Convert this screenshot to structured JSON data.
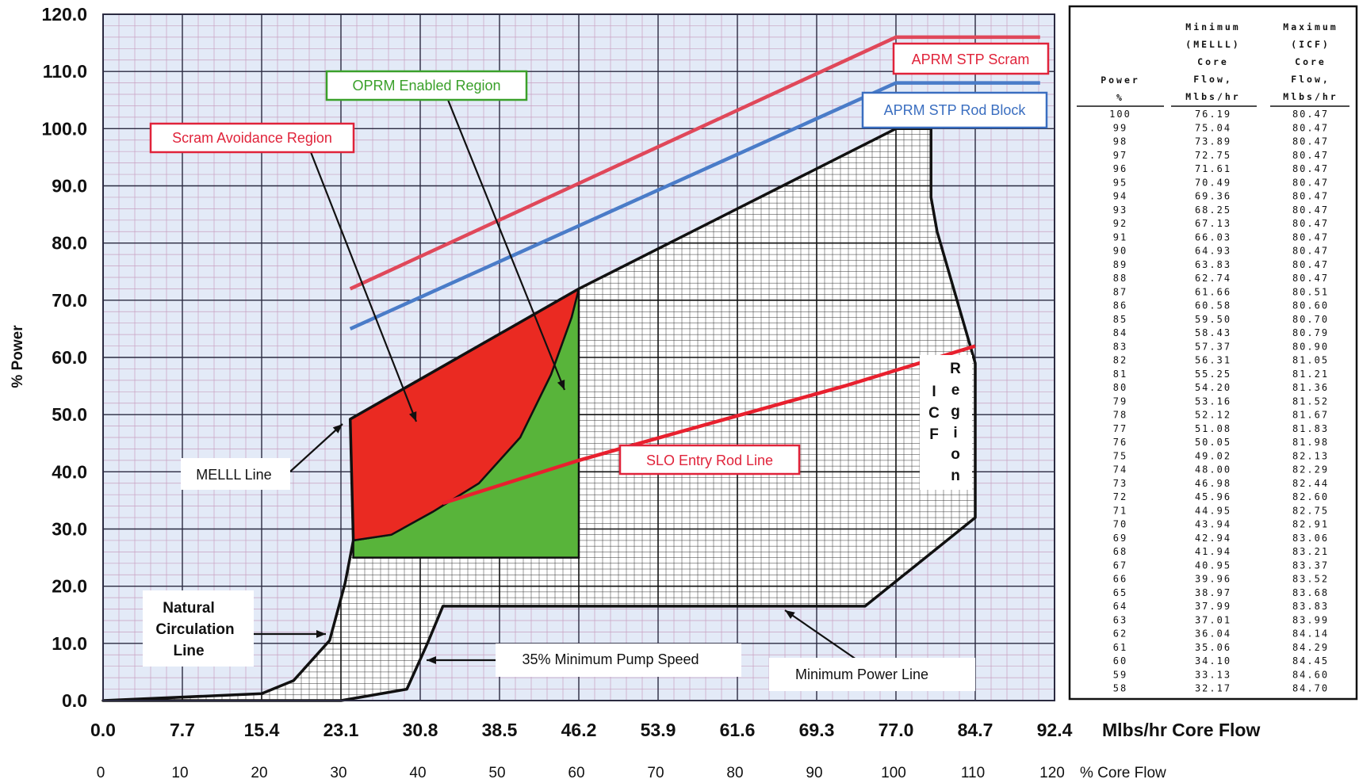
{
  "chart_data": {
    "type": "line",
    "title": "",
    "ylabel": "% Power",
    "xlabel": "Mlbs/hr Core Flow",
    "xlabel2": "% Core Flow",
    "xlim": [
      0,
      92.4
    ],
    "ylim": [
      0,
      120
    ],
    "grid": true,
    "x_ticks": [
      "0.0",
      "7.7",
      "15.4",
      "23.1",
      "30.8",
      "38.5",
      "46.2",
      "53.9",
      "61.6",
      "69.3",
      "77.0",
      "84.7",
      "92.4"
    ],
    "x2_ticks": [
      "0",
      "10",
      "20",
      "30",
      "40",
      "50",
      "60",
      "70",
      "80",
      "90",
      "100",
      "110",
      "120"
    ],
    "y_ticks": [
      "0.0",
      "10.0",
      "20.0",
      "30.0",
      "40.0",
      "50.0",
      "60.0",
      "70.0",
      "80.0",
      "90.0",
      "100.0",
      "110.0",
      "120.0"
    ],
    "boundary": {
      "name": "Operating domain boundary",
      "points": [
        [
          0,
          0
        ],
        [
          15.4,
          1.2
        ],
        [
          18.5,
          3.5
        ],
        [
          22,
          10.5
        ],
        [
          23.5,
          20.5
        ],
        [
          24.3,
          28
        ],
        [
          24.2,
          35
        ],
        [
          24.0,
          49.2
        ],
        [
          46.2,
          72
        ],
        [
          77,
          100
        ],
        [
          80.4,
          100
        ],
        [
          80.4,
          88
        ],
        [
          81,
          82
        ],
        [
          84.7,
          59
        ],
        [
          84.7,
          32
        ],
        [
          74,
          16.5
        ],
        [
          33,
          16.5
        ],
        [
          31.5,
          10
        ],
        [
          29.5,
          2
        ],
        [
          26,
          0.9
        ],
        [
          23.1,
          0
        ]
      ]
    },
    "regions": [
      {
        "name": "Scram Avoidance Region",
        "color": "#ea2a22",
        "points": [
          [
            24,
            49.2
          ],
          [
            46.2,
            72
          ],
          [
            45.5,
            67
          ],
          [
            43.5,
            57
          ],
          [
            40.5,
            46
          ],
          [
            36.5,
            38
          ],
          [
            32,
            33
          ],
          [
            28,
            29
          ],
          [
            24.3,
            28
          ]
        ]
      },
      {
        "name": "OPRM Enabled Region",
        "color": "#58b43a",
        "points": [
          [
            24.3,
            28
          ],
          [
            28,
            29
          ],
          [
            32,
            33
          ],
          [
            36.5,
            38
          ],
          [
            40.5,
            46
          ],
          [
            43.5,
            57
          ],
          [
            45.5,
            67
          ],
          [
            46.2,
            72
          ],
          [
            46.2,
            25
          ],
          [
            24.3,
            25
          ]
        ]
      }
    ],
    "series": [
      {
        "name": "APRM STP Scram",
        "color": "#e0485a",
        "points": [
          [
            24,
            72
          ],
          [
            77,
            116
          ],
          [
            91,
            116
          ]
        ]
      },
      {
        "name": "APRM STP Rod Block",
        "color": "#4a7cc8",
        "points": [
          [
            24,
            65
          ],
          [
            77,
            108
          ],
          [
            91,
            108
          ]
        ]
      },
      {
        "name": "SLO Entry Rod Line",
        "color": "#e8202e",
        "points": [
          [
            33,
            34.5
          ],
          [
            46.2,
            42
          ],
          [
            60,
            49
          ],
          [
            72,
            55
          ],
          [
            84.7,
            62
          ]
        ]
      }
    ],
    "annotations": [
      {
        "text": "APRM STP Scram",
        "color": "#e0233a"
      },
      {
        "text": "APRM STP Rod Block",
        "color": "#3a6ec0"
      },
      {
        "text": "OPRM Enabled Region",
        "color": "#3aa02a"
      },
      {
        "text": "Scram Avoidance Region",
        "color": "#e0233a"
      },
      {
        "text": "MELLL Line",
        "color": "#111111"
      },
      {
        "text": "SLO Entry Rod Line",
        "color": "#e0233a"
      },
      {
        "text": "Natural Circulation Line",
        "lines": [
          "Natural",
          "Circulation",
          "Line"
        ],
        "color": "#111111"
      },
      {
        "text": "35% Minimum Pump Speed",
        "color": "#111111"
      },
      {
        "text": "Minimum Power Line",
        "color": "#111111"
      },
      {
        "text": "ICF Region",
        "chars_icf": [
          "I",
          "C",
          "F"
        ],
        "chars_region": [
          "R",
          "e",
          "g",
          "i",
          "o",
          "n"
        ],
        "color": "#111111"
      }
    ],
    "table": {
      "headers": [
        {
          "lines": [
            "Power",
            "%"
          ]
        },
        {
          "lines": [
            "Minimum",
            "(MELLL)",
            "Core",
            "Flow,",
            "Mlbs/hr"
          ]
        },
        {
          "lines": [
            "Maximum",
            "(ICF)",
            "Core",
            "Flow,",
            "Mlbs/hr"
          ]
        }
      ],
      "rows": [
        [
          "100",
          "76.19",
          "80.47"
        ],
        [
          "99",
          "75.04",
          "80.47"
        ],
        [
          "98",
          "73.89",
          "80.47"
        ],
        [
          "97",
          "72.75",
          "80.47"
        ],
        [
          "96",
          "71.61",
          "80.47"
        ],
        [
          "95",
          "70.49",
          "80.47"
        ],
        [
          "94",
          "69.36",
          "80.47"
        ],
        [
          "93",
          "68.25",
          "80.47"
        ],
        [
          "92",
          "67.13",
          "80.47"
        ],
        [
          "91",
          "66.03",
          "80.47"
        ],
        [
          "90",
          "64.93",
          "80.47"
        ],
        [
          "89",
          "63.83",
          "80.47"
        ],
        [
          "88",
          "62.74",
          "80.47"
        ],
        [
          "87",
          "61.66",
          "80.51"
        ],
        [
          "86",
          "60.58",
          "80.60"
        ],
        [
          "85",
          "59.50",
          "80.70"
        ],
        [
          "84",
          "58.43",
          "80.79"
        ],
        [
          "83",
          "57.37",
          "80.90"
        ],
        [
          "82",
          "56.31",
          "81.05"
        ],
        [
          "81",
          "55.25",
          "81.21"
        ],
        [
          "80",
          "54.20",
          "81.36"
        ],
        [
          "79",
          "53.16",
          "81.52"
        ],
        [
          "78",
          "52.12",
          "81.67"
        ],
        [
          "77",
          "51.08",
          "81.83"
        ],
        [
          "76",
          "50.05",
          "81.98"
        ],
        [
          "75",
          "49.02",
          "82.13"
        ],
        [
          "74",
          "48.00",
          "82.29"
        ],
        [
          "73",
          "46.98",
          "82.44"
        ],
        [
          "72",
          "45.96",
          "82.60"
        ],
        [
          "71",
          "44.95",
          "82.75"
        ],
        [
          "70",
          "43.94",
          "82.91"
        ],
        [
          "69",
          "42.94",
          "83.06"
        ],
        [
          "68",
          "41.94",
          "83.21"
        ],
        [
          "67",
          "40.95",
          "83.37"
        ],
        [
          "66",
          "39.96",
          "83.52"
        ],
        [
          "65",
          "38.97",
          "83.68"
        ],
        [
          "64",
          "37.99",
          "83.83"
        ],
        [
          "63",
          "37.01",
          "83.99"
        ],
        [
          "62",
          "36.04",
          "84.14"
        ],
        [
          "61",
          "35.06",
          "84.29"
        ],
        [
          "60",
          "34.10",
          "84.45"
        ],
        [
          "59",
          "33.13",
          "84.60"
        ],
        [
          "58",
          "32.17",
          "84.70"
        ]
      ]
    }
  }
}
